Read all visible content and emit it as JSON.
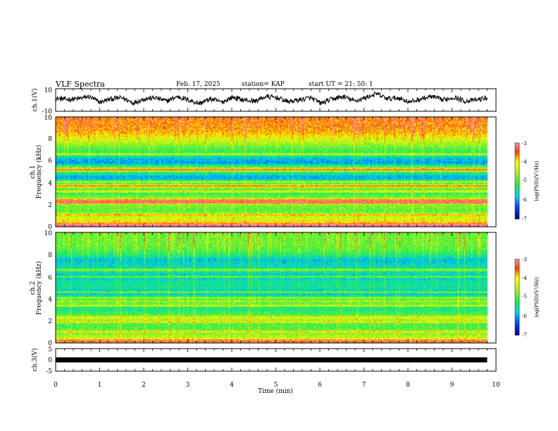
{
  "header": {
    "title": "VLF Spectra",
    "date": "Feb. 17, 2025",
    "station": "station= KAP",
    "start_ut": "start  UT  =   21: 50: 1"
  },
  "chart_data": [
    {
      "type": "line",
      "panel": "ch1-waveform",
      "ylabel": "ch.1(V)",
      "ylim": [
        -10,
        10
      ],
      "yticks": [
        "10",
        "-10"
      ],
      "xlim": [
        0,
        10
      ],
      "x_end": 9.8,
      "envelope": [
        1.5,
        0.5,
        1.0,
        3.0,
        -2.0,
        1.0,
        2.0,
        -2.5,
        1.0,
        2.0,
        -1.0,
        3.0,
        0.0,
        -3.0,
        1.0,
        -2.0,
        2.5,
        0.0,
        -1.0,
        3.0,
        2.0,
        -1.5,
        0.0,
        2.0,
        -3.0,
        1.0,
        3.0,
        -1.0,
        2.0,
        5.5,
        1.0,
        2.0,
        -2.0,
        1.0,
        3.0,
        0.0,
        2.5,
        -1.0,
        0.0,
        2.0
      ],
      "color": "#000000"
    },
    {
      "type": "heatmap",
      "panel": "ch1-spectrogram",
      "ylabel_channel": "ch.1",
      "ylabel": "Frequency (kHz)",
      "ylim": [
        0,
        10
      ],
      "yticks": [
        "0",
        "2",
        "4",
        "6",
        "8",
        "10"
      ],
      "xlim": [
        0,
        10
      ],
      "x_end": 9.8,
      "zlim": [
        -7,
        -3
      ],
      "colorbar_label": "log(PSD)(V²/Hz)",
      "colorbar_ticks": [
        "-3",
        "-4",
        "-5",
        "-6",
        "-7"
      ],
      "spectrum_profile": [
        [
          0.0,
          -3.3
        ],
        [
          0.4,
          -4.0
        ],
        [
          1.0,
          -4.6
        ],
        [
          1.5,
          -5.0
        ],
        [
          2.0,
          -4.8
        ],
        [
          2.3,
          -3.6
        ],
        [
          2.5,
          -4.6
        ],
        [
          3.0,
          -5.2
        ],
        [
          3.5,
          -4.9
        ],
        [
          3.7,
          -4.3
        ],
        [
          4.0,
          -5.2
        ],
        [
          4.5,
          -6.0
        ],
        [
          4.9,
          -5.4
        ],
        [
          5.2,
          -4.1
        ],
        [
          5.4,
          -4.9
        ],
        [
          5.8,
          -6.0
        ],
        [
          6.2,
          -5.8
        ],
        [
          6.5,
          -5.3
        ],
        [
          7.0,
          -5.1
        ],
        [
          7.5,
          -4.7
        ],
        [
          8.0,
          -4.3
        ],
        [
          8.5,
          -3.9
        ],
        [
          9.0,
          -3.7
        ],
        [
          10.0,
          -3.6
        ]
      ],
      "bright_lines_khz": [
        0.2,
        1.1,
        2.2,
        2.4,
        3.2,
        3.7,
        4.1,
        5.2,
        6.6
      ],
      "impulsive": true
    },
    {
      "type": "heatmap",
      "panel": "ch2-spectrogram",
      "ylabel_channel": "ch.2",
      "ylabel": "Frequency (kHz)",
      "ylim": [
        0,
        10
      ],
      "yticks": [
        "0",
        "2",
        "4",
        "6",
        "8",
        "10"
      ],
      "xlim": [
        0,
        10
      ],
      "x_end": 9.8,
      "zlim": [
        -7,
        -3
      ],
      "colorbar_label": "log(PSD)(V²/Hz)",
      "colorbar_ticks": [
        "-3",
        "-4",
        "-5",
        "-6",
        "-7"
      ],
      "spectrum_profile": [
        [
          0.0,
          -3.6
        ],
        [
          0.4,
          -4.4
        ],
        [
          1.0,
          -4.9
        ],
        [
          1.5,
          -5.1
        ],
        [
          2.0,
          -4.9
        ],
        [
          2.3,
          -4.1
        ],
        [
          2.5,
          -5.0
        ],
        [
          3.0,
          -5.4
        ],
        [
          3.5,
          -5.2
        ],
        [
          3.8,
          -4.6
        ],
        [
          4.0,
          -5.4
        ],
        [
          4.5,
          -5.8
        ],
        [
          5.0,
          -5.5
        ],
        [
          5.5,
          -5.5
        ],
        [
          6.0,
          -5.8
        ],
        [
          6.5,
          -5.5
        ],
        [
          7.0,
          -5.6
        ],
        [
          7.5,
          -5.8
        ],
        [
          8.0,
          -5.3
        ],
        [
          8.5,
          -5.0
        ],
        [
          9.0,
          -4.9
        ],
        [
          10.0,
          -4.9
        ]
      ],
      "bright_lines_khz": [
        0.2,
        1.0,
        1.9,
        3.4,
        4.1,
        4.6,
        6.0,
        6.6
      ],
      "impulsive": true
    },
    {
      "type": "line",
      "panel": "ch3-waveform",
      "ylabel": "ch.3(V)",
      "ylim": [
        -5,
        5
      ],
      "yticks": [
        "5",
        "0",
        "-5"
      ],
      "xlim": [
        0,
        10
      ],
      "x_end": 9.8,
      "band": [
        -0.5,
        0.5
      ],
      "color": "#000000"
    }
  ],
  "x_axis": {
    "label": "Time (min)",
    "ticks": [
      "0",
      "1",
      "2",
      "3",
      "4",
      "5",
      "6",
      "7",
      "8",
      "9",
      "10"
    ]
  }
}
